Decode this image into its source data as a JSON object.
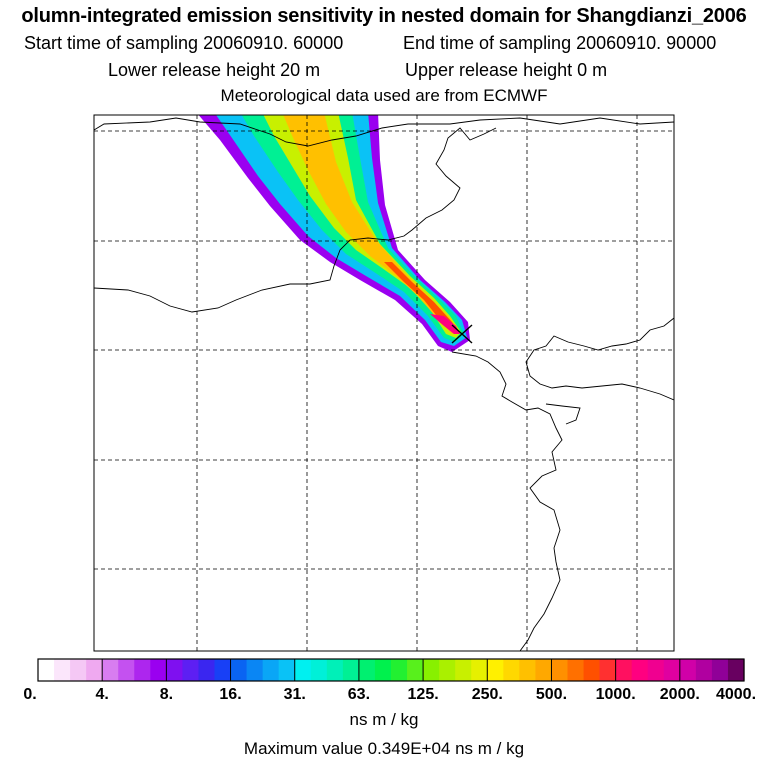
{
  "header": {
    "title": "olumn-integrated emission sensitivity in nested domain for Shangdianzi_2006",
    "start_label": "Start time of sampling 20060910. 60000",
    "end_label": "End time of sampling 20060910. 90000",
    "lower_label": "Lower release height   20 m",
    "upper_label": "Upper release height    0 m",
    "met_label": "Meteorological data used are from ECMWF"
  },
  "colorbar": {
    "ticks": [
      "0.",
      "4.",
      "8.",
      "16.",
      "31.",
      "63.",
      "125.",
      "250.",
      "500.",
      "1000.",
      "2000.",
      "4000."
    ],
    "colors": [
      "#ffffff",
      "#fbe6fb",
      "#f5c8f5",
      "#efa9f0",
      "#d87df0",
      "#c451f0",
      "#ad26ee",
      "#9a00f0",
      "#7f10f0",
      "#5d1ff3",
      "#3a26f0",
      "#1840f6",
      "#0a64f2",
      "#0a86f4",
      "#0aa6f6",
      "#0ac2f6",
      "#00f0f0",
      "#00f0d8",
      "#00f0b8",
      "#00f094",
      "#00f070",
      "#00f14d",
      "#22f031",
      "#58f01c",
      "#88f000",
      "#aaf000",
      "#c8f000",
      "#e6f000",
      "#fff000",
      "#ffd800",
      "#ffc000",
      "#ffa800",
      "#ff9000",
      "#ff7000",
      "#ff5000",
      "#ff3030",
      "#ff1060",
      "#ff0080",
      "#f00090",
      "#e000a0",
      "#d000a8",
      "#b000a0",
      "#900098",
      "#680060"
    ],
    "units": "ns m / kg"
  },
  "footer": {
    "max_value": "Maximum value  0.349E+04 ns m / kg"
  },
  "map": {
    "receptor_marker": "x-mark",
    "plume_colors": {
      "edge": "#9a00f0",
      "outer": "#0ac2f6",
      "mid": "#00f094",
      "inner": "#c8f000",
      "core": "#ffc000",
      "hot": "#ff5000",
      "peak": "#ff0080"
    }
  }
}
